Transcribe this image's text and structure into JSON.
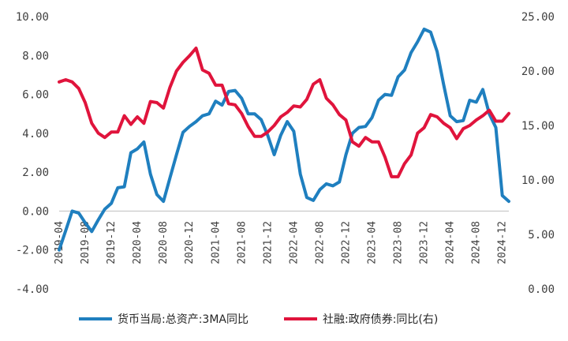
{
  "chart_data": {
    "type": "line",
    "colors": {
      "left": "#1f7fbf",
      "right": "#e0143c"
    },
    "left_axis": {
      "ticks": [
        "10.00",
        "8.00",
        "6.00",
        "4.00",
        "2.00",
        "0.00",
        "-2.00",
        "-4.00"
      ],
      "range": [
        -4,
        10
      ]
    },
    "right_axis": {
      "ticks": [
        "25.00",
        "20.00",
        "15.00",
        "10.00",
        "5.00",
        "0.00"
      ],
      "range": [
        0,
        25
      ]
    },
    "x_ticks": [
      "2019-04",
      "2019-08",
      "2019-12",
      "2020-04",
      "2020-08",
      "2020-12",
      "2021-04",
      "2021-08",
      "2021-12",
      "2022-04",
      "2022-08",
      "2022-12",
      "2023-04",
      "2023-08",
      "2023-12",
      "2024-04",
      "2024-08",
      "2024-12"
    ],
    "x": [
      "2019-04",
      "2019-05",
      "2019-06",
      "2019-07",
      "2019-08",
      "2019-09",
      "2019-10",
      "2019-11",
      "2019-12",
      "2020-01",
      "2020-02",
      "2020-03",
      "2020-04",
      "2020-05",
      "2020-06",
      "2020-07",
      "2020-08",
      "2020-09",
      "2020-10",
      "2020-11",
      "2020-12",
      "2021-01",
      "2021-02",
      "2021-03",
      "2021-04",
      "2021-05",
      "2021-06",
      "2021-07",
      "2021-08",
      "2021-09",
      "2021-10",
      "2021-11",
      "2021-12",
      "2022-01",
      "2022-02",
      "2022-03",
      "2022-04",
      "2022-05",
      "2022-06",
      "2022-07",
      "2022-08",
      "2022-09",
      "2022-10",
      "2022-11",
      "2022-12",
      "2023-01",
      "2023-02",
      "2023-03",
      "2023-04",
      "2023-05",
      "2023-06",
      "2023-07",
      "2023-08",
      "2023-09",
      "2023-10",
      "2023-11",
      "2023-12",
      "2024-01",
      "2024-02",
      "2024-03",
      "2024-04",
      "2024-05",
      "2024-06",
      "2024-07",
      "2024-08",
      "2024-09",
      "2024-10",
      "2024-11",
      "2024-12",
      "2025-01"
    ],
    "series": [
      {
        "name": "货币当局:总资产:3MA同比",
        "axis": "left",
        "values": [
          -2.0,
          -1.0,
          0.0,
          -0.1,
          -0.6,
          -1.05,
          -0.45,
          0.1,
          0.4,
          1.2,
          1.25,
          3.0,
          3.2,
          3.55,
          1.9,
          0.85,
          0.5,
          1.7,
          2.9,
          4.05,
          4.35,
          4.6,
          4.9,
          5.0,
          5.65,
          5.45,
          6.15,
          6.2,
          5.8,
          5.0,
          5.0,
          4.7,
          3.9,
          2.9,
          3.9,
          4.6,
          4.1,
          1.9,
          0.7,
          0.55,
          1.1,
          1.4,
          1.3,
          1.5,
          2.9,
          4.0,
          4.3,
          4.35,
          4.8,
          5.7,
          6.0,
          5.95,
          6.9,
          7.25,
          8.15,
          8.7,
          9.35,
          9.2,
          8.2,
          6.5,
          4.9,
          4.6,
          4.65,
          5.7,
          5.6,
          6.25,
          5.0,
          4.3,
          0.8,
          0.5
        ]
      },
      {
        "name": "社融:政府债券:同比(右)",
        "axis": "right",
        "values": [
          19.0,
          19.2,
          19.0,
          18.4,
          17.1,
          15.2,
          14.3,
          13.9,
          14.4,
          14.4,
          15.9,
          15.1,
          15.8,
          15.2,
          17.2,
          17.1,
          16.6,
          18.5,
          20.0,
          20.8,
          21.4,
          22.1,
          20.1,
          19.8,
          18.7,
          18.7,
          17.0,
          16.9,
          16.1,
          14.9,
          14.0,
          14.0,
          14.4,
          15.0,
          15.8,
          16.2,
          16.8,
          16.7,
          17.4,
          18.8,
          19.2,
          17.5,
          16.9,
          16.0,
          15.5,
          13.5,
          13.1,
          13.9,
          13.5,
          13.5,
          12.1,
          10.3,
          10.3,
          11.5,
          12.3,
          14.3,
          14.8,
          16.0,
          15.8,
          15.2,
          14.8,
          13.8,
          14.7,
          15.0,
          15.5,
          15.9,
          16.4,
          15.4,
          15.4,
          16.1
        ]
      }
    ]
  },
  "legend": {
    "left_label": "货币当局:总资产:3MA同比",
    "right_label": "社融:政府债券:同比(右)"
  }
}
